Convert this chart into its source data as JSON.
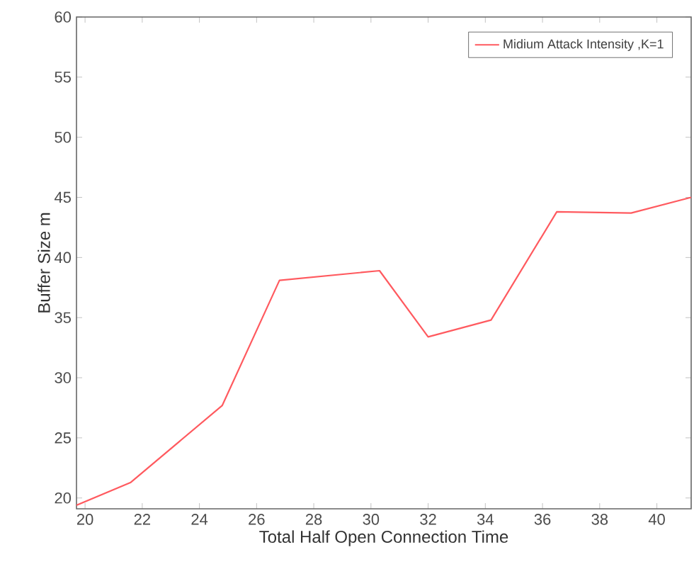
{
  "chart_data": {
    "type": "line",
    "xlabel": "Total Half Open Connection Time",
    "ylabel": "Buffer Size m",
    "x": [
      19.7,
      21.6,
      24.8,
      26.8,
      30.3,
      32.0,
      34.2,
      36.5,
      39.1,
      41.2
    ],
    "series": [
      {
        "name": "Midium Attack Intensity ,K=1",
        "color": "#ff5a5f",
        "values": [
          19.4,
          21.3,
          27.7,
          38.1,
          38.9,
          33.4,
          34.8,
          43.8,
          43.7,
          45.0
        ]
      }
    ],
    "xlim": [
      19.7,
      41.2
    ],
    "ylim": [
      19.1,
      60
    ],
    "xticks": [
      20,
      22,
      24,
      26,
      28,
      30,
      32,
      34,
      36,
      38,
      40
    ],
    "yticks": [
      20,
      25,
      30,
      35,
      40,
      45,
      50,
      55,
      60
    ],
    "legend": "top right",
    "grid": false,
    "marker": "none",
    "line_style": "solid"
  }
}
